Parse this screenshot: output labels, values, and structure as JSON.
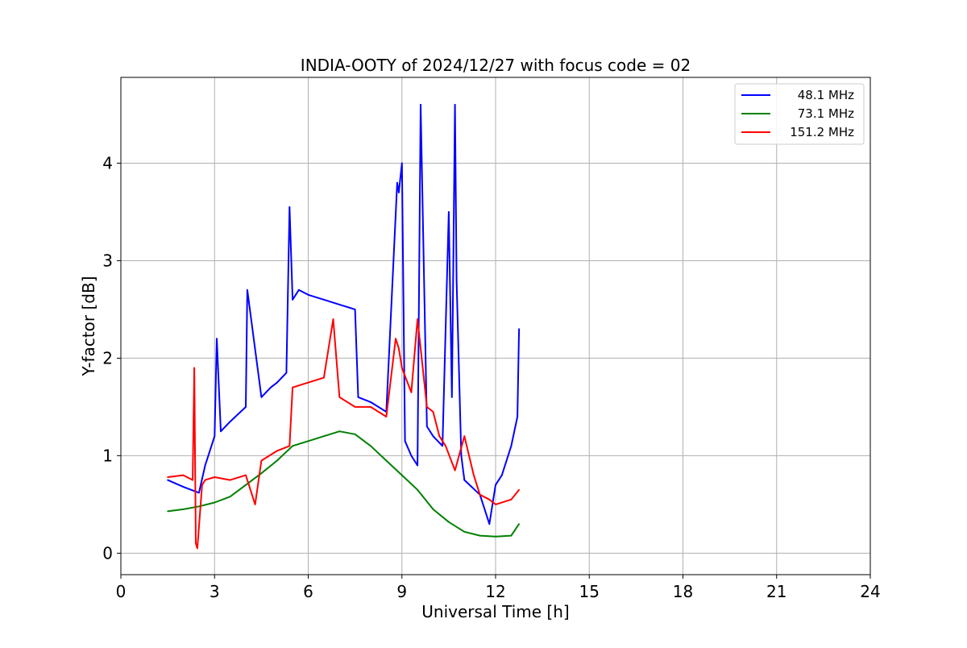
{
  "chart_data": {
    "type": "line",
    "title": "INDIA-OOTY of 2024/12/27 with focus code = 02",
    "xlabel": "Universal Time [h]",
    "ylabel": "Y-factor [dB]",
    "xlim": [
      0,
      24
    ],
    "ylim": [
      -0.22,
      4.88
    ],
    "xticks": [
      0,
      3,
      6,
      9,
      12,
      15,
      18,
      21,
      24
    ],
    "xtick_labels": [
      "0",
      "3",
      "6",
      "9",
      "12",
      "15",
      "18",
      "21",
      "24"
    ],
    "yticks": [
      0,
      1,
      2,
      3,
      4
    ],
    "ytick_labels": [
      "0",
      "1",
      "2",
      "3",
      "4"
    ],
    "grid": true,
    "legend_position": "top-right",
    "series": [
      {
        "name": "48.1 MHz",
        "color": "#0000ff",
        "x": [
          1.5,
          2.0,
          2.5,
          2.7,
          3.0,
          3.07,
          3.2,
          3.5,
          4.0,
          4.05,
          4.5,
          4.8,
          5.0,
          5.3,
          5.4,
          5.5,
          5.7,
          6.0,
          6.5,
          7.0,
          7.5,
          7.6,
          8.0,
          8.5,
          8.85,
          8.9,
          9.0,
          9.1,
          9.3,
          9.5,
          9.6,
          9.8,
          10.0,
          10.3,
          10.5,
          10.6,
          10.7,
          10.75,
          10.9,
          11.0,
          11.5,
          11.8,
          12.0,
          12.2,
          12.5,
          12.7,
          12.75
        ],
        "y": [
          0.75,
          0.68,
          0.62,
          0.9,
          1.2,
          2.2,
          1.25,
          1.35,
          1.5,
          2.7,
          1.6,
          1.7,
          1.75,
          1.85,
          3.55,
          2.6,
          2.7,
          2.65,
          2.6,
          2.55,
          2.5,
          1.6,
          1.55,
          1.45,
          3.8,
          3.7,
          4.0,
          1.15,
          1.0,
          0.9,
          4.6,
          1.3,
          1.2,
          1.1,
          3.5,
          1.6,
          4.6,
          2.8,
          1.0,
          0.75,
          0.6,
          0.3,
          0.7,
          0.8,
          1.1,
          1.4,
          2.3
        ]
      },
      {
        "name": "73.1 MHz",
        "color": "#008000",
        "x": [
          1.5,
          2.0,
          2.5,
          3.0,
          3.5,
          4.0,
          4.5,
          5.0,
          5.5,
          6.0,
          6.5,
          7.0,
          7.5,
          8.0,
          8.5,
          9.0,
          9.5,
          10.0,
          10.5,
          11.0,
          11.5,
          12.0,
          12.5,
          12.75
        ],
        "y": [
          0.43,
          0.45,
          0.48,
          0.52,
          0.58,
          0.7,
          0.82,
          0.95,
          1.1,
          1.15,
          1.2,
          1.25,
          1.22,
          1.1,
          0.95,
          0.8,
          0.65,
          0.45,
          0.32,
          0.22,
          0.18,
          0.17,
          0.18,
          0.3
        ]
      },
      {
        "name": "151.2 MHz",
        "color": "#ff0000",
        "x": [
          1.5,
          2.0,
          2.3,
          2.35,
          2.4,
          2.45,
          2.6,
          2.7,
          3.0,
          3.5,
          4.0,
          4.3,
          4.5,
          5.0,
          5.4,
          5.5,
          6.0,
          6.5,
          6.8,
          7.0,
          7.5,
          8.0,
          8.5,
          8.8,
          8.9,
          9.0,
          9.3,
          9.5,
          9.8,
          10.0,
          10.2,
          10.4,
          10.7,
          11.0,
          11.3,
          11.5,
          11.8,
          12.0,
          12.5,
          12.75
        ],
        "y": [
          0.78,
          0.8,
          0.75,
          1.9,
          0.1,
          0.05,
          0.7,
          0.75,
          0.78,
          0.75,
          0.8,
          0.5,
          0.95,
          1.05,
          1.1,
          1.7,
          1.75,
          1.8,
          2.4,
          1.6,
          1.5,
          1.5,
          1.4,
          2.2,
          2.1,
          1.9,
          1.65,
          2.4,
          1.5,
          1.45,
          1.2,
          1.1,
          0.85,
          1.2,
          0.8,
          0.6,
          0.55,
          0.5,
          0.55,
          0.65
        ]
      }
    ]
  }
}
